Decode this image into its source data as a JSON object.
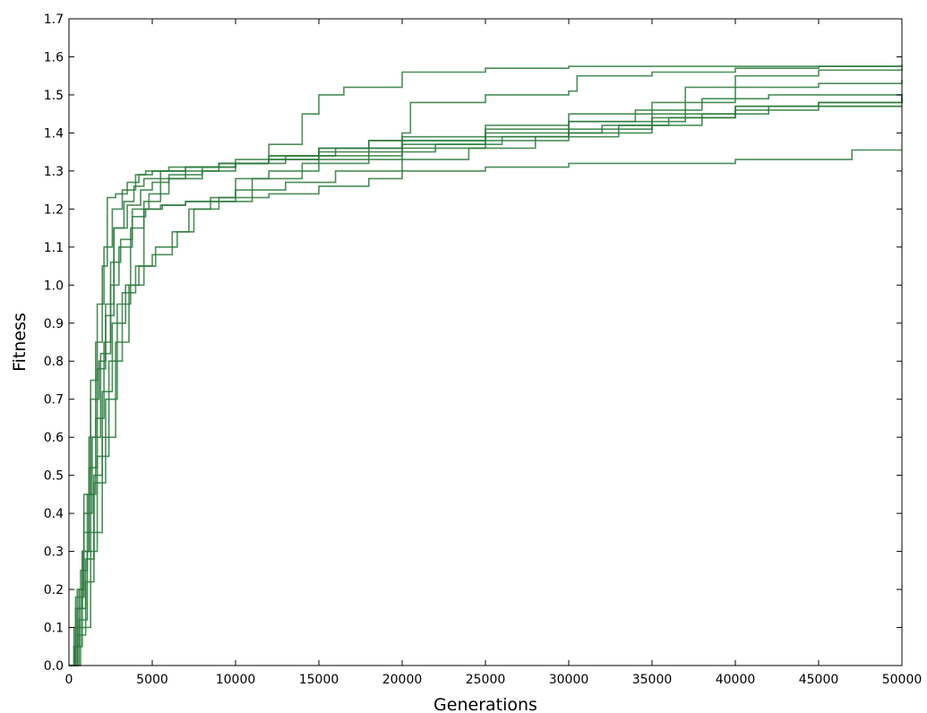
{
  "chart_data": {
    "type": "line",
    "title": "",
    "xlabel": "Generations",
    "ylabel": "Fitness",
    "xlim": [
      0,
      50000
    ],
    "ylim": [
      0.0,
      1.7
    ],
    "grid": false,
    "legend": "none",
    "line_color": "#2a7a3b",
    "x_ticks": [
      0,
      5000,
      10000,
      15000,
      20000,
      25000,
      30000,
      35000,
      40000,
      45000,
      50000
    ],
    "x_tick_labels": [
      "0",
      "5000",
      "10000",
      "15000",
      "20000",
      "25000",
      "30000",
      "35000",
      "40000",
      "45000",
      "50000"
    ],
    "y_ticks": [
      0.0,
      0.1,
      0.2,
      0.3,
      0.4,
      0.5,
      0.6,
      0.7,
      0.8,
      0.9,
      1.0,
      1.1,
      1.2,
      1.3,
      1.4,
      1.5,
      1.6,
      1.7
    ],
    "y_tick_labels": [
      "0.0",
      "0.1",
      "0.2",
      "0.3",
      "0.4",
      "0.5",
      "0.6",
      "0.7",
      "0.8",
      "0.9",
      "1.0",
      "1.1",
      "1.2",
      "1.3",
      "1.4",
      "1.5",
      "1.6",
      "1.7"
    ],
    "series": [
      {
        "x": [
          0,
          300,
          600,
          900,
          1300,
          1700,
          2100,
          2600,
          3200,
          4000,
          4600,
          6000,
          8000,
          10000,
          12000,
          14000,
          15000,
          16500,
          20000,
          25000,
          30000,
          35000,
          40000,
          45000,
          50000
        ],
        "y": [
          0.0,
          0.05,
          0.2,
          0.45,
          0.75,
          0.95,
          1.1,
          1.2,
          1.25,
          1.29,
          1.3,
          1.31,
          1.31,
          1.33,
          1.37,
          1.45,
          1.5,
          1.52,
          1.56,
          1.57,
          1.575,
          1.575,
          1.575,
          1.575,
          1.575
        ]
      },
      {
        "x": [
          0,
          400,
          800,
          1200,
          1600,
          2000,
          2300,
          2800,
          3500,
          4200,
          5000,
          7000,
          9000,
          12000,
          15000,
          18000,
          20000,
          20500,
          25000,
          30000,
          30500,
          35000,
          40000,
          45000,
          50000
        ],
        "y": [
          0.0,
          0.15,
          0.3,
          0.6,
          0.85,
          1.05,
          1.23,
          1.24,
          1.27,
          1.29,
          1.3,
          1.31,
          1.32,
          1.33,
          1.35,
          1.38,
          1.4,
          1.48,
          1.5,
          1.51,
          1.55,
          1.56,
          1.57,
          1.575,
          1.58
        ]
      },
      {
        "x": [
          0,
          500,
          900,
          1300,
          1800,
          2200,
          2700,
          3300,
          3900,
          4500,
          5500,
          7000,
          9000,
          12000,
          15000,
          20000,
          25000,
          30000,
          35000,
          37000,
          40000,
          45000,
          50000
        ],
        "y": [
          0.0,
          0.2,
          0.35,
          0.7,
          0.8,
          0.95,
          1.15,
          1.22,
          1.26,
          1.28,
          1.3,
          1.31,
          1.32,
          1.33,
          1.34,
          1.36,
          1.38,
          1.4,
          1.43,
          1.52,
          1.55,
          1.565,
          1.57
        ]
      },
      {
        "x": [
          0,
          300,
          700,
          1100,
          1600,
          2100,
          2500,
          3000,
          3800,
          4800,
          6000,
          8000,
          10000,
          12000,
          15000,
          18000,
          20000,
          25000,
          30000,
          35000,
          40000,
          45000,
          50000
        ],
        "y": [
          0.0,
          0.1,
          0.25,
          0.45,
          0.65,
          0.85,
          1.0,
          1.1,
          1.2,
          1.24,
          1.28,
          1.3,
          1.32,
          1.34,
          1.36,
          1.38,
          1.39,
          1.42,
          1.45,
          1.48,
          1.52,
          1.53,
          1.54
        ]
      },
      {
        "x": [
          0,
          600,
          1100,
          1700,
          2400,
          3200,
          4000,
          5000,
          6200,
          7200,
          8500,
          10000,
          12000,
          15000,
          20000,
          25000,
          30000,
          35000,
          40000,
          45000,
          50000
        ],
        "y": [
          0.0,
          0.12,
          0.3,
          0.55,
          0.8,
          0.98,
          1.05,
          1.08,
          1.14,
          1.2,
          1.22,
          1.28,
          1.3,
          1.33,
          1.37,
          1.39,
          1.41,
          1.44,
          1.47,
          1.48,
          1.5
        ]
      },
      {
        "x": [
          0,
          500,
          1000,
          1500,
          2000,
          2600,
          3400,
          4200,
          5200,
          6500,
          7500,
          9000,
          11000,
          14000,
          18000,
          22000,
          26000,
          30000,
          32000,
          36000,
          40000,
          45000,
          50000
        ],
        "y": [
          0.0,
          0.08,
          0.22,
          0.5,
          0.72,
          0.9,
          1.0,
          1.05,
          1.1,
          1.14,
          1.2,
          1.22,
          1.28,
          1.32,
          1.35,
          1.37,
          1.39,
          1.4,
          1.42,
          1.44,
          1.46,
          1.47,
          1.47
        ]
      },
      {
        "x": [
          0,
          400,
          900,
          1400,
          1900,
          2500,
          3100,
          3800,
          4600,
          5600,
          7000,
          8500,
          10000,
          13000,
          16000,
          20000,
          24000,
          28000,
          33000,
          38000,
          42000,
          46000,
          50000
        ],
        "y": [
          0.0,
          0.18,
          0.4,
          0.6,
          0.82,
          1.06,
          1.12,
          1.18,
          1.2,
          1.21,
          1.22,
          1.23,
          1.25,
          1.27,
          1.3,
          1.33,
          1.36,
          1.39,
          1.42,
          1.45,
          1.47,
          1.47,
          1.47
        ]
      },
      {
        "x": [
          0,
          700,
          1300,
          2000,
          2800,
          3600,
          4500,
          5500,
          7000,
          9000,
          12000,
          15000,
          18000,
          20000,
          25000,
          30000,
          35000,
          40000,
          45000,
          47000,
          50000
        ],
        "y": [
          0.0,
          0.1,
          0.35,
          0.6,
          0.85,
          1.0,
          1.2,
          1.21,
          1.22,
          1.23,
          1.24,
          1.26,
          1.28,
          1.3,
          1.31,
          1.32,
          1.32,
          1.33,
          1.33,
          1.355,
          1.355
        ]
      },
      {
        "x": [
          0,
          300,
          800,
          1200,
          1700,
          2200,
          2700,
          3500,
          4300,
          5000,
          6000,
          8000,
          10000,
          13000,
          16000,
          20000,
          25000,
          30000,
          35000,
          40000,
          45000,
          50000
        ],
        "y": [
          0.0,
          0.05,
          0.3,
          0.52,
          0.78,
          0.92,
          1.15,
          1.21,
          1.25,
          1.27,
          1.29,
          1.31,
          1.32,
          1.34,
          1.36,
          1.38,
          1.4,
          1.43,
          1.45,
          1.47,
          1.48,
          1.5
        ]
      },
      {
        "x": [
          0,
          500,
          1000,
          1500,
          2200,
          2900,
          3700,
          4500,
          5500,
          7000,
          9000,
          12000,
          15000,
          20000,
          25000,
          30000,
          34000,
          38000,
          42000,
          46000,
          50000
        ],
        "y": [
          0.0,
          0.15,
          0.28,
          0.48,
          0.7,
          0.95,
          1.15,
          1.22,
          1.28,
          1.3,
          1.32,
          1.34,
          1.36,
          1.38,
          1.41,
          1.43,
          1.46,
          1.49,
          1.5,
          1.5,
          1.5
        ]
      }
    ]
  }
}
